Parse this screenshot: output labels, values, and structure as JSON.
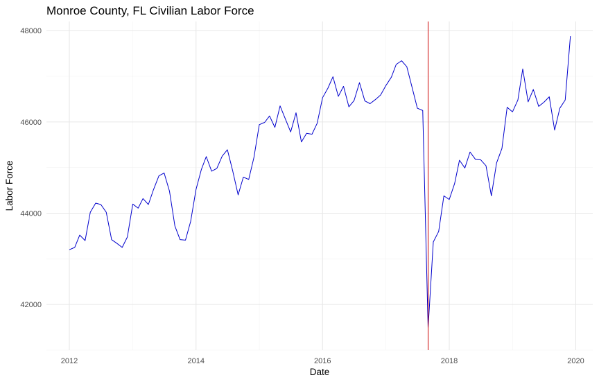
{
  "chart_data": {
    "type": "line",
    "title": "Monroe County, FL Civilian Labor Force",
    "xlabel": "Date",
    "ylabel": "Labor Force",
    "xlim": [
      "2011-08-22",
      "2020-04-08"
    ],
    "ylim": [
      41000,
      48200
    ],
    "x_ticks": [
      "2012",
      "2014",
      "2016",
      "2018",
      "2020"
    ],
    "y_ticks": [
      "42000",
      "44000",
      "46000",
      "48000"
    ],
    "grid": true,
    "legend": "none",
    "colors": {
      "series": "#0000cc",
      "vline": "#cc0000",
      "grid_major": "#e6e6e6",
      "grid_minor": "#f2f2f2"
    },
    "annotations": [
      {
        "type": "vertical-line",
        "x": "2017-09-01"
      }
    ],
    "series": [
      {
        "x": [
          "2012-01",
          "2012-02",
          "2012-03",
          "2012-04",
          "2012-05",
          "2012-06",
          "2012-07",
          "2012-08",
          "2012-09",
          "2012-10",
          "2012-11",
          "2012-12",
          "2013-01",
          "2013-02",
          "2013-03",
          "2013-04",
          "2013-05",
          "2013-06",
          "2013-07",
          "2013-08",
          "2013-09",
          "2013-10",
          "2013-11",
          "2013-12",
          "2014-01",
          "2014-02",
          "2014-03",
          "2014-04",
          "2014-05",
          "2014-06",
          "2014-07",
          "2014-08",
          "2014-09",
          "2014-10",
          "2014-11",
          "2014-12",
          "2015-01",
          "2015-02",
          "2015-03",
          "2015-04",
          "2015-05",
          "2015-06",
          "2015-07",
          "2015-08",
          "2015-09",
          "2015-10",
          "2015-11",
          "2015-12",
          "2016-01",
          "2016-02",
          "2016-03",
          "2016-04",
          "2016-05",
          "2016-06",
          "2016-07",
          "2016-08",
          "2016-09",
          "2016-10",
          "2016-11",
          "2016-12",
          "2017-01",
          "2017-02",
          "2017-03",
          "2017-04",
          "2017-05",
          "2017-06",
          "2017-07",
          "2017-08",
          "2017-09",
          "2017-10",
          "2017-11",
          "2017-12",
          "2018-01",
          "2018-02",
          "2018-03",
          "2018-04",
          "2018-05",
          "2018-06",
          "2018-07",
          "2018-08",
          "2018-09",
          "2018-10",
          "2018-11",
          "2018-12",
          "2019-01",
          "2019-02",
          "2019-03",
          "2019-04",
          "2019-05",
          "2019-06",
          "2019-07",
          "2019-08",
          "2019-09",
          "2019-10",
          "2019-11",
          "2019-12"
        ],
        "values": [
          43200,
          43250,
          43520,
          43400,
          44020,
          44220,
          44190,
          44020,
          43420,
          43340,
          43250,
          43480,
          44200,
          44110,
          44320,
          44190,
          44520,
          44820,
          44880,
          44480,
          43720,
          43420,
          43410,
          43820,
          44520,
          44960,
          45240,
          44920,
          44980,
          45250,
          45390,
          44920,
          44400,
          44790,
          44740,
          45220,
          45940,
          45990,
          46130,
          45880,
          46350,
          46060,
          45780,
          46200,
          45560,
          45750,
          45730,
          45970,
          46530,
          46740,
          46990,
          46560,
          46780,
          46330,
          46470,
          46860,
          46460,
          46400,
          46490,
          46590,
          46800,
          46980,
          47260,
          47340,
          47210,
          46750,
          46300,
          46250,
          41480,
          43370,
          43600,
          44380,
          44300,
          44650,
          45160,
          44990,
          45340,
          45180,
          45170,
          45040,
          44380,
          45100,
          45420,
          46320,
          46220,
          46480,
          47160,
          46440,
          46710,
          46340,
          46430,
          46550,
          45820,
          46300,
          46480,
          47880
        ]
      }
    ]
  }
}
